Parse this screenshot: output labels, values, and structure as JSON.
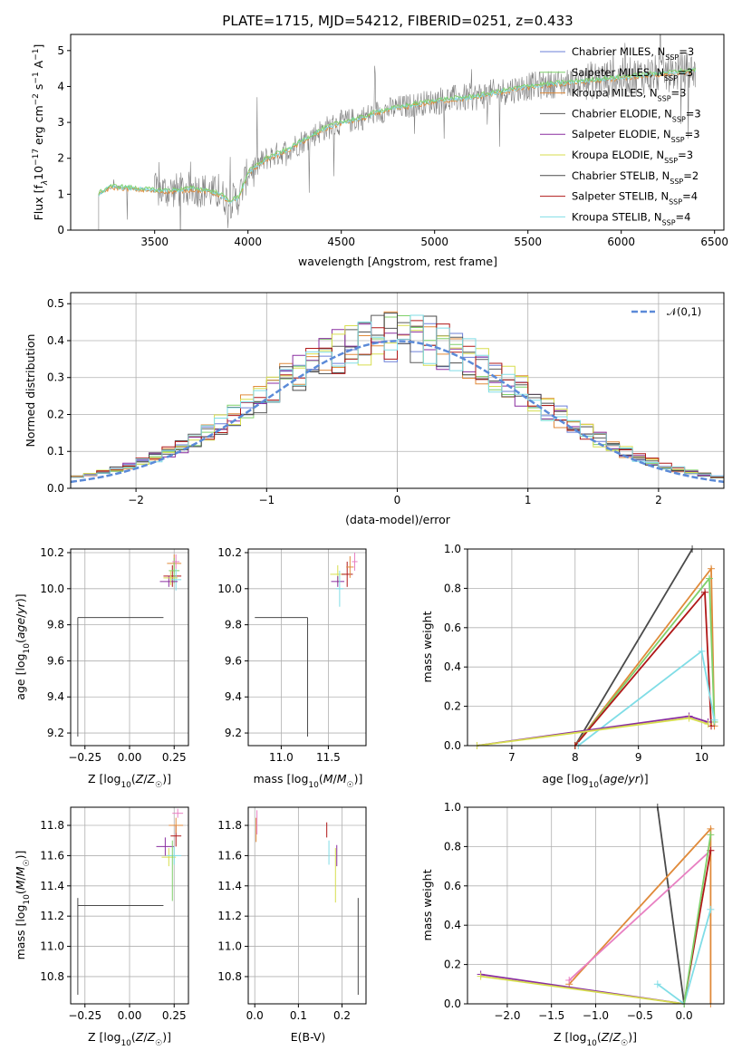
{
  "title": "PLATE=1715, MJD=54212, FIBERID=0251, z=0.433",
  "colors": {
    "Chabrier MILES": "#6b7fd7",
    "Salpeter MILES": "#7fd06a",
    "Kroupa MILES": "#e08a3a",
    "Chabrier ELODIE": "#5a5a5a",
    "Salpeter ELODIE": "#8a2ea0",
    "Kroupa ELODIE": "#d7de4e",
    "Chabrier STELIB": "#4a4a4a",
    "Salpeter STELIB": "#b01818",
    "Kroupa STELIB": "#80dde6",
    "pink": "#e87fc2",
    "normal": "#5b8ad8",
    "data": "#808080"
  },
  "chart_data": [
    {
      "type": "line",
      "id": "spectrum",
      "title": "PLATE=1715, MJD=54212, FIBERID=0251, z=0.433",
      "xlabel": "wavelength [Angstrom, rest frame]",
      "ylabel": "Flux [f$_\\lambda$10$^{-17}$ erg cm$^{-2}$ s$^{-1}$ A$^{-1}$]",
      "xlim": [
        3050,
        6550
      ],
      "ylim": [
        0,
        5.45
      ],
      "xticks": [
        3500,
        4000,
        4500,
        5000,
        5500,
        6000,
        6500
      ],
      "yticks": [
        0,
        1,
        2,
        3,
        4,
        5
      ],
      "grid": false,
      "legend_position": "top-right",
      "legend": [
        {
          "name": "Chabrier MILES",
          "nssp": "3"
        },
        {
          "name": "Salpeter MILES",
          "nssp": "3"
        },
        {
          "name": "Kroupa MILES",
          "nssp": "3"
        },
        {
          "name": "Chabrier ELODIE",
          "nssp": "3"
        },
        {
          "name": "Salpeter ELODIE",
          "nssp": "3"
        },
        {
          "name": "Kroupa ELODIE",
          "nssp": "3"
        },
        {
          "name": "Chabrier STELIB",
          "nssp": "2"
        },
        {
          "name": "Salpeter STELIB",
          "nssp": "4"
        },
        {
          "name": "Kroupa STELIB",
          "nssp": "4"
        }
      ],
      "continuum": {
        "x": [
          3200,
          3260,
          3300,
          3400,
          3500,
          3600,
          3700,
          3780,
          3850,
          3900,
          3950,
          4000,
          4100,
          4200,
          4300,
          4400,
          4500,
          4600,
          4700,
          4800,
          4900,
          5000,
          5100,
          5200,
          5300,
          5400,
          5500,
          5600,
          5700,
          5800,
          5900,
          6000,
          6100,
          6200,
          6300,
          6400
        ],
        "y": [
          1.0,
          1.2,
          1.2,
          1.15,
          1.1,
          1.1,
          1.15,
          1.1,
          1.0,
          0.8,
          0.9,
          1.6,
          2.0,
          2.2,
          2.5,
          2.8,
          3.0,
          3.1,
          3.3,
          3.4,
          3.5,
          3.6,
          3.65,
          3.7,
          3.8,
          3.9,
          4.0,
          4.05,
          4.1,
          4.15,
          4.2,
          4.25,
          4.3,
          4.35,
          4.4,
          4.45
        ]
      }
    },
    {
      "type": "line",
      "id": "residuals",
      "xlabel": "(data-model)/error",
      "ylabel": "Normed distribution",
      "xlim": [
        -2.5,
        2.5
      ],
      "ylim": [
        0,
        0.53
      ],
      "xticks": [
        -2,
        -1,
        0,
        1,
        2
      ],
      "yticks": [
        0.0,
        0.1,
        0.2,
        0.3,
        0.4,
        0.5
      ],
      "grid": true,
      "legend_position": "top-right",
      "legend": [
        "𝒩(0,1)"
      ],
      "bin_width": 0.1
    },
    {
      "type": "scatter",
      "id": "age-vs-Z",
      "xlabel": "Z [log$_{10}$(Z/Z$_\\odot$)]",
      "ylabel": "age  [log$_{10}$(age/yr)]",
      "xlim": [
        -0.33,
        0.33
      ],
      "ylim": [
        9.13,
        10.22
      ],
      "xticks": [
        -0.25,
        0.0,
        0.25
      ],
      "yticks": [
        9.2,
        9.4,
        9.6,
        9.8,
        10.0,
        10.2
      ],
      "grid": true
    },
    {
      "type": "scatter",
      "id": "age-vs-mass",
      "xlabel": "mass [log$_{10}$(M/M$_\\odot$)]",
      "xlim": [
        10.65,
        11.9
      ],
      "ylim": [
        9.13,
        10.22
      ],
      "xticks": [
        11.0,
        11.5
      ],
      "yticks": [
        9.2,
        9.4,
        9.6,
        9.8,
        10.0,
        10.2
      ],
      "grid": true
    },
    {
      "type": "line",
      "id": "mass-weight-vs-age",
      "xlabel": "age  [log$_{10}$(age/yr)]",
      "ylabel": "mass weight",
      "xlim": [
        6.3,
        10.35
      ],
      "ylim": [
        0,
        1.0
      ],
      "xticks": [
        7,
        8,
        9,
        10
      ],
      "yticks": [
        0.0,
        0.2,
        0.4,
        0.6,
        0.8,
        1.0
      ],
      "grid": true,
      "series": [
        {
          "color": "Chabrier STELIB",
          "points": [
            [
              8.0,
              0.0
            ],
            [
              9.85,
              1.0
            ]
          ]
        },
        {
          "color": "Kroupa MILES",
          "points": [
            [
              8.0,
              0.0
            ],
            [
              10.15,
              0.9
            ],
            [
              10.2,
              0.1
            ]
          ]
        },
        {
          "color": "Salpeter MILES",
          "points": [
            [
              8.0,
              0.0
            ],
            [
              10.12,
              0.85
            ],
            [
              10.2,
              0.12
            ]
          ]
        },
        {
          "color": "Salpeter STELIB",
          "points": [
            [
              8.0,
              0.0
            ],
            [
              10.05,
              0.78
            ],
            [
              10.15,
              0.1
            ]
          ]
        },
        {
          "color": "Kroupa STELIB",
          "points": [
            [
              8.05,
              0.0
            ],
            [
              10.0,
              0.48
            ],
            [
              10.2,
              0.13
            ]
          ]
        },
        {
          "color": "Salpeter ELODIE",
          "points": [
            [
              6.45,
              0.0
            ],
            [
              9.8,
              0.15
            ],
            [
              10.1,
              0.12
            ]
          ]
        },
        {
          "color": "Kroupa ELODIE",
          "points": [
            [
              6.45,
              0.0
            ],
            [
              9.8,
              0.14
            ],
            [
              10.1,
              0.11
            ]
          ]
        }
      ]
    },
    {
      "type": "scatter",
      "id": "mass-vs-Z",
      "xlabel": "Z [log$_{10}$(Z/Z$_\\odot$)]",
      "ylabel": "mass [log$_{10}$(M/M$_\\odot$)]",
      "xlim": [
        -0.33,
        0.33
      ],
      "ylim": [
        10.62,
        11.92
      ],
      "xticks": [
        -0.25,
        0.0,
        0.25
      ],
      "yticks": [
        10.8,
        11.0,
        11.2,
        11.4,
        11.6,
        11.8
      ],
      "grid": true
    },
    {
      "type": "scatter",
      "id": "mass-vs-EBV",
      "xlabel": "E(B-V)",
      "xlim": [
        -0.015,
        0.255
      ],
      "ylim": [
        10.62,
        11.92
      ],
      "xticks": [
        0.0,
        0.1,
        0.2
      ],
      "yticks": [
        10.8,
        11.0,
        11.2,
        11.4,
        11.6,
        11.8
      ],
      "grid": true
    },
    {
      "type": "line",
      "id": "mass-weight-vs-Z",
      "xlabel": "Z [log$_{10}$(Z/Z$_\\odot$)]",
      "ylabel": "mass weight",
      "xlim": [
        -2.45,
        0.45
      ],
      "ylim": [
        0,
        1.0
      ],
      "xticks": [
        -2.0,
        -1.5,
        -1.0,
        -0.5,
        0.0
      ],
      "yticks": [
        0.0,
        0.2,
        0.4,
        0.6,
        0.8,
        1.0
      ],
      "grid": true,
      "series": [
        {
          "color": "Chabrier STELIB",
          "points": [
            [
              -0.3,
              1.0
            ],
            [
              0.0,
              0.0
            ]
          ]
        },
        {
          "color": "Kroupa MILES",
          "points": [
            [
              -1.3,
              0.1
            ],
            [
              0.3,
              0.89
            ],
            [
              0.3,
              0.0
            ]
          ]
        },
        {
          "color": "pink",
          "points": [
            [
              -1.3,
              0.12
            ],
            [
              0.3,
              0.78
            ]
          ]
        },
        {
          "color": "Salpeter ELODIE",
          "points": [
            [
              -2.3,
              0.15
            ],
            [
              0.0,
              0.0
            ]
          ]
        },
        {
          "color": "Kroupa ELODIE",
          "points": [
            [
              -2.3,
              0.14
            ],
            [
              0.0,
              0.0
            ]
          ]
        },
        {
          "color": "Salpeter STELIB",
          "points": [
            [
              0.0,
              0.0
            ],
            [
              0.3,
              0.78
            ]
          ]
        },
        {
          "color": "Kroupa STELIB",
          "points": [
            [
              -0.3,
              0.1
            ],
            [
              0.0,
              0.0
            ],
            [
              0.3,
              0.48
            ]
          ]
        },
        {
          "color": "Salpeter MILES",
          "points": [
            [
              0.0,
              0.0
            ],
            [
              0.3,
              0.86
            ]
          ]
        }
      ]
    }
  ]
}
